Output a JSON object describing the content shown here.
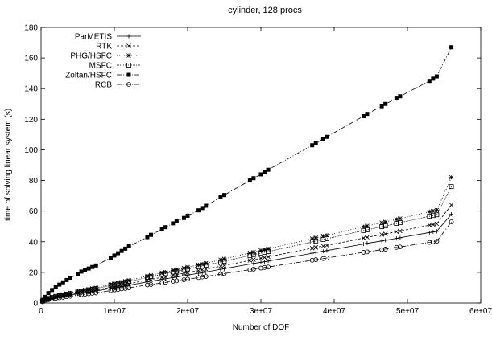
{
  "chart_data": {
    "type": "line",
    "title": "cylinder, 128 procs",
    "xlabel": "Number of DOF",
    "ylabel": "time of solving linear system (s)",
    "xlim": [
      0,
      60000000
    ],
    "ylim": [
      0,
      180
    ],
    "x_ticks": [
      0,
      10000000,
      20000000,
      30000000,
      40000000,
      50000000,
      60000000
    ],
    "x_tick_labels": [
      "0",
      "1e+07",
      "2e+07",
      "3e+07",
      "4e+07",
      "5e+07",
      "6e+07"
    ],
    "y_ticks": [
      0,
      20,
      40,
      60,
      80,
      100,
      120,
      140,
      160,
      180
    ],
    "y_tick_labels": [
      "0",
      "20",
      "40",
      "60",
      "80",
      "100",
      "120",
      "140",
      "160",
      "180"
    ],
    "grid": false,
    "legend_position": "top-left",
    "x": [
      200000,
      500000,
      1000000,
      1500000,
      2000000,
      2500000,
      3000000,
      3500000,
      4000000,
      5000000,
      5500000,
      6000000,
      6500000,
      7000000,
      7500000,
      9500000,
      10000000,
      10500000,
      11000000,
      11500000,
      12000000,
      14500000,
      15000000,
      16500000,
      17000000,
      18000000,
      18500000,
      19500000,
      20000000,
      21500000,
      22000000,
      22500000,
      24500000,
      25000000,
      28500000,
      29000000,
      30000000,
      30500000,
      31000000,
      37000000,
      37500000,
      38500000,
      39000000,
      44000000,
      44500000,
      46500000,
      47000000,
      48500000,
      49000000,
      53000000,
      53500000,
      54000000,
      56000000
    ],
    "series": [
      {
        "name": "ParMETIS",
        "marker": "plus",
        "dash": "",
        "values": [
          1,
          1.7,
          2.5,
          3,
          3.5,
          4,
          4.4,
          4.8,
          5.2,
          6,
          6.4,
          6.7,
          7,
          7.4,
          7.8,
          9.5,
          10,
          10.4,
          10.8,
          11.2,
          11.6,
          13.8,
          14.2,
          15.4,
          15.8,
          16.6,
          17,
          17.8,
          18.2,
          19.4,
          19.8,
          20.2,
          22,
          22.4,
          25.4,
          25.8,
          26.6,
          27,
          27.4,
          32.5,
          33,
          33.8,
          34.2,
          38.5,
          39,
          40.5,
          41,
          42.2,
          42.6,
          46,
          46.4,
          46.8,
          58
        ]
      },
      {
        "name": "RTK",
        "marker": "x",
        "dash": "3,2",
        "values": [
          1.1,
          1.9,
          2.7,
          3.3,
          3.8,
          4.3,
          4.8,
          5.2,
          5.6,
          6.5,
          6.9,
          7.3,
          7.7,
          8.1,
          8.4,
          10.3,
          10.8,
          11.3,
          11.7,
          12.1,
          12.6,
          15,
          15.4,
          16.8,
          17.2,
          18.1,
          18.6,
          19.4,
          19.9,
          21.2,
          21.7,
          22.1,
          24,
          24.5,
          27.8,
          28.3,
          29.2,
          29.7,
          30.1,
          35.8,
          36.3,
          37.2,
          37.6,
          42.4,
          42.9,
          44.6,
          45.1,
          46.5,
          47,
          50.8,
          51.2,
          51.7,
          64
        ]
      },
      {
        "name": "PHG/HSFC",
        "marker": "star",
        "dash": "1,2",
        "values": [
          1.3,
          2.2,
          3.2,
          3.9,
          4.5,
          5.1,
          5.6,
          6.1,
          6.6,
          7.6,
          8.1,
          8.6,
          9,
          9.5,
          9.9,
          12.1,
          12.7,
          13.2,
          13.7,
          14.2,
          14.8,
          17.6,
          18.1,
          19.7,
          20.2,
          21.3,
          21.8,
          22.8,
          23.4,
          24.9,
          25.5,
          26,
          28.2,
          28.8,
          32.7,
          33.2,
          34.3,
          34.8,
          35.4,
          42,
          42.6,
          43.7,
          44.2,
          49.8,
          50.3,
          52.4,
          52.9,
          54.6,
          55.1,
          59.6,
          60.1,
          60.6,
          82
        ]
      },
      {
        "name": "MSFC",
        "marker": "square",
        "dash": "1,1",
        "values": [
          1.2,
          2.1,
          3,
          3.7,
          4.3,
          4.8,
          5.3,
          5.8,
          6.2,
          7.2,
          7.7,
          8.1,
          8.6,
          9,
          9.4,
          11.5,
          12,
          12.5,
          13,
          13.5,
          14,
          16.7,
          17.2,
          18.7,
          19.2,
          20.2,
          20.7,
          21.7,
          22.2,
          23.7,
          24.2,
          24.7,
          26.8,
          27.3,
          31,
          31.6,
          32.6,
          33.1,
          33.6,
          39.9,
          40.5,
          41.5,
          42,
          47.3,
          47.8,
          49.8,
          50.3,
          51.9,
          52.4,
          56.6,
          57.1,
          57.6,
          76
        ]
      },
      {
        "name": "Zoltan/HSFC",
        "marker": "filled-square",
        "dash": "6,2,1,2",
        "values": [
          2,
          4,
          6.5,
          8.5,
          10.5,
          12,
          13.5,
          15,
          16.5,
          19,
          20.5,
          21.5,
          22.5,
          23.5,
          24.5,
          29.5,
          31,
          32.5,
          34,
          35.5,
          37,
          43,
          44.5,
          48,
          49.5,
          52,
          53.5,
          55.5,
          57,
          60.5,
          62,
          63.5,
          69,
          70.5,
          80,
          81.5,
          84,
          85.5,
          87,
          103,
          104.5,
          107,
          108.5,
          122,
          123.5,
          128.5,
          130,
          133.5,
          135,
          145,
          146.5,
          148,
          167
        ]
      },
      {
        "name": "RCB",
        "marker": "circle",
        "dash": "6,2,1,2",
        "values": [
          0.8,
          1.4,
          2.1,
          2.6,
          3,
          3.4,
          3.7,
          4.1,
          4.4,
          5.1,
          5.4,
          5.7,
          6,
          6.3,
          6.6,
          8.1,
          8.5,
          8.8,
          9.2,
          9.5,
          9.9,
          11.8,
          12.1,
          13.1,
          13.5,
          14.2,
          14.5,
          15.2,
          15.6,
          16.6,
          17,
          17.3,
          18.8,
          19.2,
          21.7,
          22.1,
          22.8,
          23.2,
          23.5,
          27.9,
          28.3,
          29,
          29.4,
          33.1,
          33.4,
          34.8,
          35.2,
          36.3,
          36.6,
          39.6,
          40,
          40.3,
          53
        ]
      }
    ]
  }
}
